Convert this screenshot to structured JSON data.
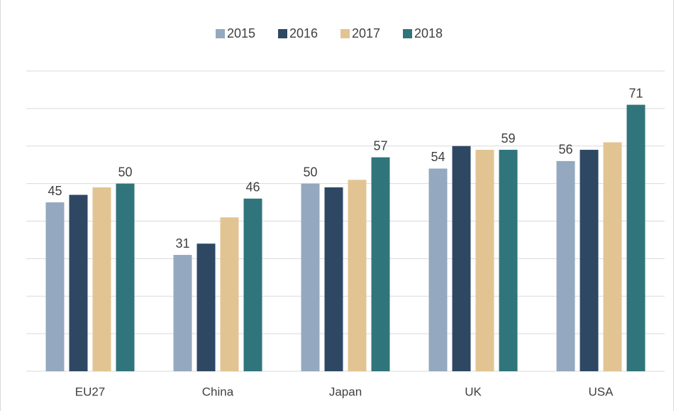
{
  "chart_data": {
    "type": "bar",
    "categories": [
      "EU27",
      "China",
      "Japan",
      "UK",
      "USA"
    ],
    "series": [
      {
        "name": "2015",
        "color": "#94a9bf",
        "values": [
          45,
          31,
          50,
          54,
          56
        ],
        "show_labels": true
      },
      {
        "name": "2016",
        "color": "#2e4864",
        "values": [
          47,
          34,
          49,
          60,
          59
        ],
        "show_labels": false
      },
      {
        "name": "2017",
        "color": "#e2c493",
        "values": [
          49,
          41,
          51,
          59,
          61
        ],
        "show_labels": false
      },
      {
        "name": "2018",
        "color": "#30757b",
        "values": [
          50,
          46,
          57,
          59,
          71
        ],
        "show_labels": true
      }
    ],
    "ylim": [
      0,
      80
    ],
    "yticks": [
      0,
      10,
      20,
      30,
      40,
      50,
      60,
      70,
      80
    ],
    "grid": true,
    "legend": "top"
  }
}
